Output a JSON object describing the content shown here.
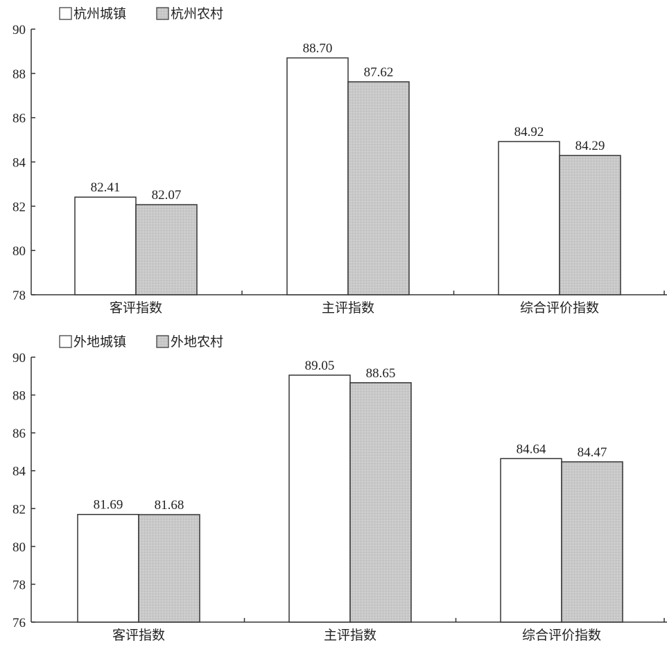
{
  "colors": {
    "urban": "#ffffff",
    "rural": "#c9c9c9",
    "stroke": "#333333"
  },
  "chart_data": [
    {
      "type": "bar",
      "categories": [
        "客评指数",
        "主评指数",
        "综合评价指数"
      ],
      "series": [
        {
          "name": "杭州城镇",
          "values": [
            82.41,
            88.7,
            84.92
          ],
          "labels": [
            "82.41",
            "88.70",
            "84.92"
          ]
        },
        {
          "name": "杭州农村",
          "values": [
            82.07,
            87.62,
            84.29
          ],
          "labels": [
            "82.07",
            "87.62",
            "84.29"
          ]
        }
      ],
      "ylim": [
        78,
        90
      ],
      "yticks": [
        "78",
        "80",
        "82",
        "84",
        "86",
        "88",
        "90"
      ],
      "legend": "top-left",
      "grid": false
    },
    {
      "type": "bar",
      "categories": [
        "客评指数",
        "主评指数",
        "综合评价指数"
      ],
      "series": [
        {
          "name": "外地城镇",
          "values": [
            81.69,
            89.05,
            84.64
          ],
          "labels": [
            "81.69",
            "89.05",
            "84.64"
          ]
        },
        {
          "name": "外地农村",
          "values": [
            81.68,
            88.65,
            84.47
          ],
          "labels": [
            "81.68",
            "88.65",
            "84.47"
          ]
        }
      ],
      "ylim": [
        76,
        90
      ],
      "yticks": [
        "76",
        "78",
        "80",
        "82",
        "84",
        "86",
        "88",
        "90"
      ],
      "legend": "top-left",
      "grid": false
    }
  ]
}
